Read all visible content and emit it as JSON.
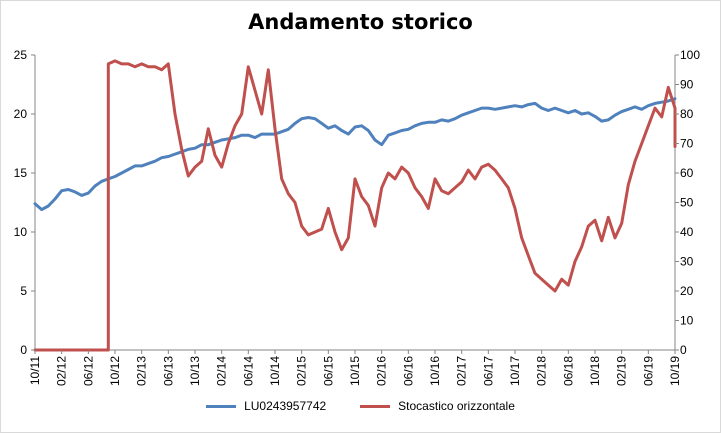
{
  "chart_data": {
    "type": "line",
    "title": "Andamento storico",
    "x_tick_labels": [
      "10/11",
      "02/12",
      "06/12",
      "10/12",
      "02/13",
      "06/13",
      "10/13",
      "02/14",
      "06/14",
      "10/14",
      "02/15",
      "06/15",
      "10/15",
      "02/16",
      "06/16",
      "10/16",
      "02/17",
      "06/17",
      "10/17",
      "02/18",
      "06/18",
      "10/18",
      "02/19",
      "06/19",
      "10/19"
    ],
    "y_left": {
      "ticks": [
        "0",
        "5",
        "10",
        "15",
        "20",
        "25"
      ],
      "range": [
        0,
        25
      ]
    },
    "y_right": {
      "ticks": [
        "0",
        "10",
        "20",
        "30",
        "40",
        "50",
        "60",
        "70",
        "80",
        "90",
        "100"
      ],
      "range": [
        0,
        100
      ]
    },
    "grid": false,
    "legend_placement": "bottom",
    "series": [
      {
        "name": "LU0243957742",
        "axis": "left",
        "color": "#4f81bd",
        "points": [
          [
            "10/11",
            12.4
          ],
          [
            "11/11",
            11.9
          ],
          [
            "12/11",
            12.2
          ],
          [
            "01/12",
            12.8
          ],
          [
            "02/12",
            13.5
          ],
          [
            "03/12",
            13.6
          ],
          [
            "04/12",
            13.4
          ],
          [
            "05/12",
            13.1
          ],
          [
            "06/12",
            13.3
          ],
          [
            "07/12",
            13.9
          ],
          [
            "08/12",
            14.3
          ],
          [
            "09/12",
            14.5
          ],
          [
            "10/12",
            14.7
          ],
          [
            "11/12",
            15.0
          ],
          [
            "12/12",
            15.3
          ],
          [
            "01/13",
            15.6
          ],
          [
            "02/13",
            15.6
          ],
          [
            "03/13",
            15.8
          ],
          [
            "04/13",
            16.0
          ],
          [
            "05/13",
            16.3
          ],
          [
            "06/13",
            16.4
          ],
          [
            "07/13",
            16.6
          ],
          [
            "08/13",
            16.8
          ],
          [
            "09/13",
            17.0
          ],
          [
            "10/13",
            17.1
          ],
          [
            "11/13",
            17.4
          ],
          [
            "12/13",
            17.4
          ],
          [
            "01/14",
            17.6
          ],
          [
            "02/14",
            17.8
          ],
          [
            "03/14",
            17.9
          ],
          [
            "04/14",
            18.0
          ],
          [
            "05/14",
            18.2
          ],
          [
            "06/14",
            18.2
          ],
          [
            "07/14",
            18.0
          ],
          [
            "08/14",
            18.3
          ],
          [
            "09/14",
            18.3
          ],
          [
            "10/14",
            18.3
          ],
          [
            "11/14",
            18.5
          ],
          [
            "12/14",
            18.7
          ],
          [
            "01/15",
            19.2
          ],
          [
            "02/15",
            19.6
          ],
          [
            "03/15",
            19.7
          ],
          [
            "04/15",
            19.6
          ],
          [
            "05/15",
            19.2
          ],
          [
            "06/15",
            18.8
          ],
          [
            "07/15",
            19.0
          ],
          [
            "08/15",
            18.6
          ],
          [
            "09/15",
            18.3
          ],
          [
            "10/15",
            18.9
          ],
          [
            "11/15",
            19.0
          ],
          [
            "12/15",
            18.6
          ],
          [
            "01/16",
            17.8
          ],
          [
            "02/16",
            17.4
          ],
          [
            "03/16",
            18.2
          ],
          [
            "04/16",
            18.4
          ],
          [
            "05/16",
            18.6
          ],
          [
            "06/16",
            18.7
          ],
          [
            "07/16",
            19.0
          ],
          [
            "08/16",
            19.2
          ],
          [
            "09/16",
            19.3
          ],
          [
            "10/16",
            19.3
          ],
          [
            "11/16",
            19.5
          ],
          [
            "12/16",
            19.4
          ],
          [
            "01/17",
            19.6
          ],
          [
            "02/17",
            19.9
          ],
          [
            "03/17",
            20.1
          ],
          [
            "04/17",
            20.3
          ],
          [
            "05/17",
            20.5
          ],
          [
            "06/17",
            20.5
          ],
          [
            "07/17",
            20.4
          ],
          [
            "08/17",
            20.5
          ],
          [
            "09/17",
            20.6
          ],
          [
            "10/17",
            20.7
          ],
          [
            "11/17",
            20.6
          ],
          [
            "12/17",
            20.8
          ],
          [
            "01/18",
            20.9
          ],
          [
            "02/18",
            20.5
          ],
          [
            "03/18",
            20.3
          ],
          [
            "04/18",
            20.5
          ],
          [
            "05/18",
            20.3
          ],
          [
            "06/18",
            20.1
          ],
          [
            "07/18",
            20.3
          ],
          [
            "08/18",
            20.0
          ],
          [
            "09/18",
            20.1
          ],
          [
            "10/18",
            19.8
          ],
          [
            "11/18",
            19.4
          ],
          [
            "12/18",
            19.5
          ],
          [
            "01/19",
            19.9
          ],
          [
            "02/19",
            20.2
          ],
          [
            "03/19",
            20.4
          ],
          [
            "04/19",
            20.6
          ],
          [
            "05/19",
            20.4
          ],
          [
            "06/19",
            20.7
          ],
          [
            "07/19",
            20.9
          ],
          [
            "08/19",
            21.0
          ],
          [
            "09/19",
            21.1
          ],
          [
            "10/19",
            21.3
          ]
        ]
      },
      {
        "name": "Stocastico orizzontale",
        "axis": "right",
        "color": "#c0504d",
        "points": [
          [
            "10/11",
            0
          ],
          [
            "08/12",
            0
          ],
          [
            "09/12",
            0
          ],
          [
            "09/12",
            97
          ],
          [
            "10/12",
            98
          ],
          [
            "11/12",
            97
          ],
          [
            "12/12",
            97
          ],
          [
            "01/13",
            96
          ],
          [
            "02/13",
            97
          ],
          [
            "03/13",
            96
          ],
          [
            "04/13",
            96
          ],
          [
            "05/13",
            95
          ],
          [
            "06/13",
            97
          ],
          [
            "07/13",
            80
          ],
          [
            "08/13",
            68
          ],
          [
            "09/13",
            59
          ],
          [
            "10/13",
            62
          ],
          [
            "11/13",
            64
          ],
          [
            "12/13",
            75
          ],
          [
            "01/14",
            66
          ],
          [
            "02/14",
            62
          ],
          [
            "03/14",
            70
          ],
          [
            "04/14",
            76
          ],
          [
            "05/14",
            80
          ],
          [
            "06/14",
            96
          ],
          [
            "07/14",
            88
          ],
          [
            "08/14",
            80
          ],
          [
            "09/14",
            95
          ],
          [
            "10/14",
            75
          ],
          [
            "11/14",
            58
          ],
          [
            "12/14",
            53
          ],
          [
            "01/15",
            50
          ],
          [
            "02/15",
            42
          ],
          [
            "03/15",
            39
          ],
          [
            "04/15",
            40
          ],
          [
            "05/15",
            41
          ],
          [
            "06/15",
            48
          ],
          [
            "07/15",
            40
          ],
          [
            "08/15",
            34
          ],
          [
            "09/15",
            38
          ],
          [
            "10/15",
            58
          ],
          [
            "11/15",
            52
          ],
          [
            "12/15",
            49
          ],
          [
            "01/16",
            42
          ],
          [
            "02/16",
            55
          ],
          [
            "03/16",
            60
          ],
          [
            "04/16",
            58
          ],
          [
            "05/16",
            62
          ],
          [
            "06/16",
            60
          ],
          [
            "07/16",
            55
          ],
          [
            "08/16",
            52
          ],
          [
            "09/16",
            48
          ],
          [
            "10/16",
            58
          ],
          [
            "11/16",
            54
          ],
          [
            "12/16",
            53
          ],
          [
            "01/17",
            55
          ],
          [
            "02/17",
            57
          ],
          [
            "03/17",
            61
          ],
          [
            "04/17",
            58
          ],
          [
            "05/17",
            62
          ],
          [
            "06/17",
            63
          ],
          [
            "07/17",
            61
          ],
          [
            "08/17",
            58
          ],
          [
            "09/17",
            55
          ],
          [
            "10/17",
            48
          ],
          [
            "11/17",
            38
          ],
          [
            "12/17",
            32
          ],
          [
            "01/18",
            26
          ],
          [
            "02/18",
            24
          ],
          [
            "03/18",
            22
          ],
          [
            "04/18",
            20
          ],
          [
            "05/18",
            24
          ],
          [
            "06/18",
            22
          ],
          [
            "07/18",
            30
          ],
          [
            "08/18",
            35
          ],
          [
            "09/18",
            42
          ],
          [
            "10/18",
            44
          ],
          [
            "11/18",
            37
          ],
          [
            "12/18",
            45
          ],
          [
            "01/19",
            38
          ],
          [
            "02/19",
            43
          ],
          [
            "03/19",
            56
          ],
          [
            "04/19",
            64
          ],
          [
            "05/19",
            70
          ],
          [
            "06/19",
            76
          ],
          [
            "07/19",
            82
          ],
          [
            "08/19",
            79
          ],
          [
            "09/19",
            89
          ],
          [
            "10/19",
            82
          ],
          [
            "10/19",
            69
          ]
        ]
      }
    ]
  }
}
